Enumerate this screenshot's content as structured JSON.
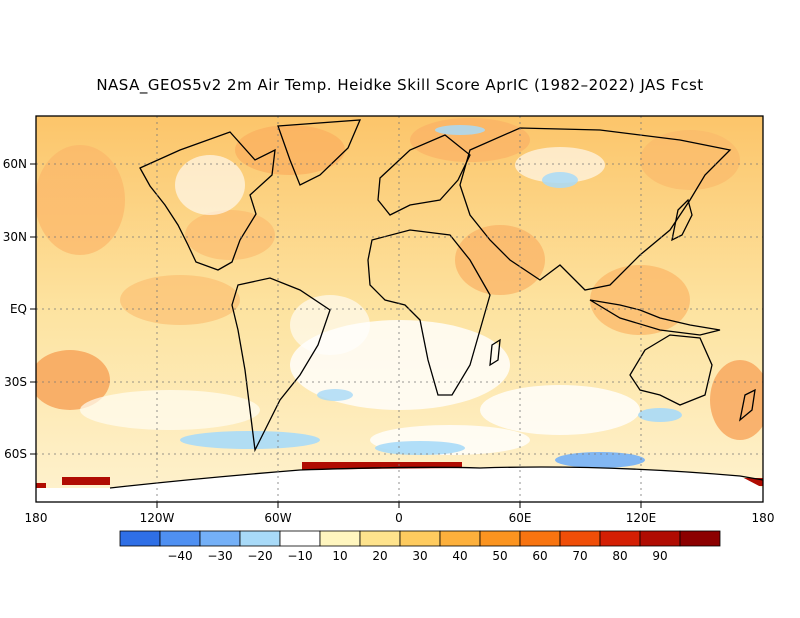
{
  "title": "NASA_GEOS5v2 2m Air Temp. Heidke Skill Score AprIC (1982–2022) JAS Fcst",
  "map": {
    "lat_ticks": [
      "60N",
      "30N",
      "EQ",
      "30S",
      "60S"
    ],
    "lon_ticks": [
      "180",
      "120W",
      "60W",
      "0",
      "60E",
      "120E",
      "180"
    ]
  },
  "colorbar": {
    "colors": [
      "#2f6fe6",
      "#4f90f2",
      "#74b0f7",
      "#a8daf8",
      "#ffffff",
      "#fff6bf",
      "#fee38d",
      "#fecb5f",
      "#fdb03c",
      "#fb9420",
      "#f87410",
      "#f04e08",
      "#d41f04",
      "#b00c02",
      "#8c0000"
    ],
    "labels": [
      "−40",
      "−30",
      "−20",
      "−10",
      "10",
      "20",
      "30",
      "40",
      "50",
      "60",
      "70",
      "80",
      "90"
    ]
  }
}
